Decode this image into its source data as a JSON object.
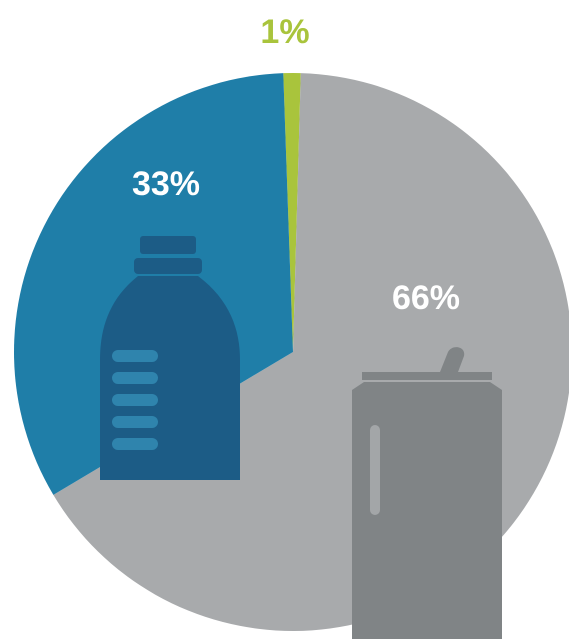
{
  "chart_data": {
    "type": "pie",
    "values": [
      1,
      66,
      33
    ],
    "value_labels": [
      "1%",
      "66%",
      "33%"
    ],
    "colors": [
      "#a9c43c",
      "#a8aaac",
      "#1f7ea8"
    ]
  }
}
